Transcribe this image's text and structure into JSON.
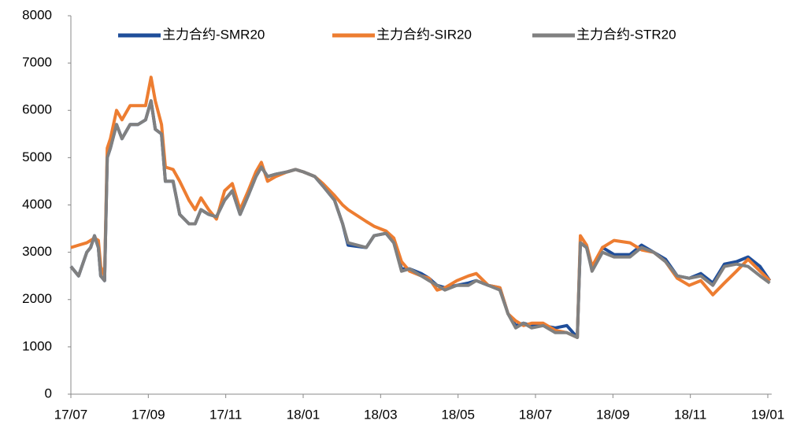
{
  "chart_data": {
    "type": "line",
    "x": [
      0,
      0.2,
      0.41,
      0.51,
      0.61,
      0.71,
      0.77,
      0.87,
      0.94,
      1.02,
      1.18,
      1.32,
      1.53,
      1.73,
      1.93,
      2.07,
      2.18,
      2.34,
      2.44,
      2.64,
      2.81,
      3.05,
      3.21,
      3.36,
      3.56,
      3.76,
      3.97,
      4.17,
      4.37,
      4.58,
      4.78,
      4.92,
      5.08,
      5.29,
      5.59,
      5.8,
      6.0,
      6.3,
      6.51,
      6.81,
      7.02,
      7.16,
      7.63,
      7.83,
      8.14,
      8.34,
      8.54,
      8.75,
      9.05,
      9.25,
      9.46,
      9.66,
      9.97,
      10.27,
      10.47,
      10.78,
      11.08,
      11.29,
      11.49,
      11.69,
      11.9,
      12.2,
      12.51,
      12.81,
      13.08,
      13.16,
      13.32,
      13.46,
      13.73,
      14.03,
      14.44,
      14.74,
      15.05,
      15.36,
      15.66,
      15.97,
      16.27,
      16.58,
      16.88,
      17.19,
      17.49,
      17.8,
      18.05
    ],
    "series": [
      {
        "name": "主力合约-SMR20",
        "color": "#1f4e9a",
        "values": [
          2700,
          2500,
          3000,
          3100,
          3350,
          3100,
          2500,
          2400,
          5000,
          5200,
          5700,
          5400,
          5700,
          5700,
          5800,
          6200,
          5600,
          5500,
          4500,
          4500,
          3800,
          3600,
          3600,
          3900,
          3800,
          3750,
          4100,
          4300,
          3800,
          4200,
          4600,
          4800,
          4600,
          4650,
          4700,
          4750,
          4700,
          4600,
          4400,
          4100,
          3600,
          3150,
          3100,
          3350,
          3400,
          3200,
          2650,
          2650,
          2550,
          2450,
          2300,
          2250,
          2300,
          2350,
          2400,
          2300,
          2250,
          1700,
          1450,
          1500,
          1450,
          1450,
          1400,
          1450,
          1200,
          3200,
          3100,
          2650,
          3100,
          2950,
          2950,
          3150,
          3000,
          2850,
          2500,
          2450,
          2550,
          2350,
          2750,
          2800,
          2900,
          2700,
          2400
        ]
      },
      {
        "name": "主力合约-SIR20",
        "color": "#ed7d31",
        "values": [
          3100,
          3150,
          3200,
          3250,
          3300,
          3250,
          2700,
          2500,
          5200,
          5400,
          6000,
          5800,
          6100,
          6100,
          6100,
          6700,
          6200,
          5700,
          4800,
          4750,
          4500,
          4100,
          3900,
          4150,
          3900,
          3700,
          4300,
          4450,
          3900,
          4300,
          4700,
          4900,
          4500,
          4600,
          4700,
          4750,
          4700,
          4600,
          4450,
          4200,
          4000,
          3900,
          3650,
          3550,
          3450,
          3300,
          2800,
          2600,
          2500,
          2450,
          2200,
          2250,
          2400,
          2500,
          2550,
          2300,
          2250,
          1700,
          1550,
          1450,
          1500,
          1500,
          1350,
          1300,
          1200,
          3350,
          3150,
          2700,
          3100,
          3250,
          3200,
          3050,
          3000,
          2800,
          2450,
          2300,
          2400,
          2100,
          2350,
          2600,
          2850,
          2600,
          2400
        ]
      },
      {
        "name": "主力合约-STR20",
        "color": "#808080",
        "values": [
          2700,
          2500,
          3000,
          3100,
          3350,
          3100,
          2500,
          2400,
          5000,
          5200,
          5700,
          5400,
          5700,
          5700,
          5800,
          6200,
          5600,
          5500,
          4500,
          4500,
          3800,
          3600,
          3600,
          3900,
          3800,
          3750,
          4100,
          4300,
          3800,
          4200,
          4600,
          4800,
          4600,
          4650,
          4700,
          4750,
          4700,
          4600,
          4400,
          4100,
          3600,
          3200,
          3100,
          3350,
          3400,
          3200,
          2600,
          2650,
          2500,
          2400,
          2300,
          2200,
          2300,
          2300,
          2400,
          2300,
          2200,
          1700,
          1400,
          1500,
          1400,
          1450,
          1300,
          1300,
          1200,
          3200,
          3100,
          2600,
          3000,
          2900,
          2900,
          3100,
          3000,
          2800,
          2500,
          2450,
          2500,
          2300,
          2700,
          2750,
          2700,
          2500,
          2350
        ]
      }
    ],
    "xlim": [
      0,
      18.1
    ],
    "xticks": [
      {
        "value": 0,
        "label": "17/07"
      },
      {
        "value": 2,
        "label": "17/09"
      },
      {
        "value": 4,
        "label": "17/11"
      },
      {
        "value": 6,
        "label": "18/01"
      },
      {
        "value": 8,
        "label": "18/03"
      },
      {
        "value": 10,
        "label": "18/05"
      },
      {
        "value": 12,
        "label": "18/07"
      },
      {
        "value": 14,
        "label": "18/09"
      },
      {
        "value": 16,
        "label": "18/11"
      },
      {
        "value": 18,
        "label": "19/01"
      }
    ],
    "ylim": [
      0,
      8000
    ],
    "yticks": [
      0,
      1000,
      2000,
      3000,
      4000,
      5000,
      6000,
      7000,
      8000
    ],
    "grid": false,
    "legend": "top"
  }
}
